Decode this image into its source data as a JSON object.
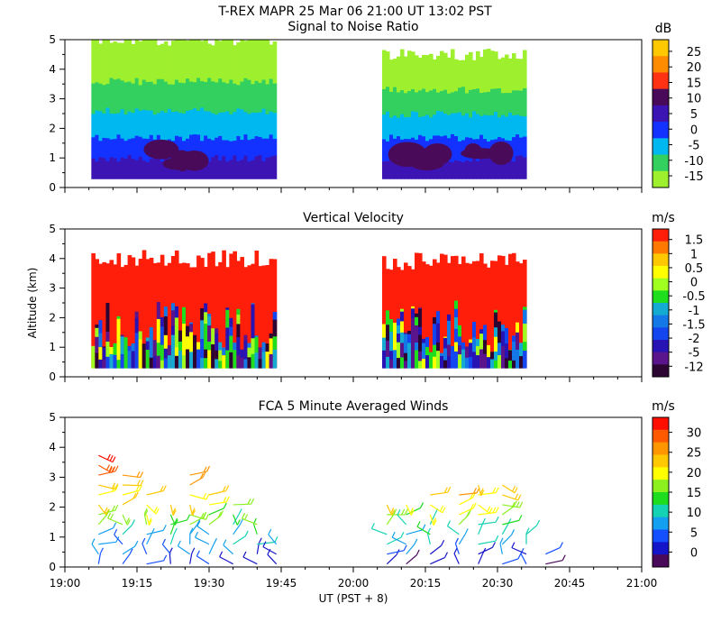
{
  "figure": {
    "title_line1": "T-REX   MAPR 25 Mar 06   21:00 UT   13:02   PST",
    "xlabel": "UT  (PST + 8)",
    "x_ticks": [
      "19:00",
      "19:15",
      "19:30",
      "19:45",
      "20:00",
      "20:15",
      "20:30",
      "20:45",
      "21:00"
    ],
    "xlim_minutes_after_1900": [
      0,
      120
    ],
    "ylabel_shared": "Altitude (km)"
  },
  "colors": {
    "snr_palette": [
      "#9eef2e",
      "#33d060",
      "#00b8f0",
      "#1432ff",
      "#3c14b4",
      "#4a0a5a",
      "#ff3214",
      "#ff8c00",
      "#ffc800"
    ],
    "velocity_palette": [
      "#2d0532",
      "#5a148c",
      "#2814b4",
      "#1446f0",
      "#1478e6",
      "#14aad2",
      "#1ede1e",
      "#a0ff1e",
      "#ffff00",
      "#ffc800",
      "#ff7800",
      "#ff1e0a"
    ],
    "wind_palette": [
      "#4a0a5a",
      "#1414c8",
      "#1450ff",
      "#14a0f0",
      "#14d2b4",
      "#1edc1e",
      "#8cf01e",
      "#ffff00",
      "#ffc800",
      "#ff9600",
      "#ff5a00",
      "#ff0f00"
    ]
  },
  "chart_data": [
    {
      "type": "heatmap",
      "title": "Signal to Noise Ratio",
      "ylabel": "",
      "ylim": [
        0,
        5
      ],
      "y_ticks": [
        "0",
        "1",
        "2",
        "3",
        "4",
        "5"
      ],
      "colorbar_unit": "dB",
      "colorbar_labels": [
        "25",
        "20",
        "15",
        "10",
        "5",
        "0",
        "-5",
        "-10",
        "-15"
      ],
      "segments": [
        {
          "start": 5.5,
          "end": 44,
          "profile_km": [
            [
              0.3,
              "-5"
            ],
            [
              1.0,
              "5"
            ],
            [
              1.7,
              "0"
            ],
            [
              2.6,
              "-5"
            ],
            [
              3.6,
              "-10"
            ],
            [
              5.0,
              "-15"
            ]
          ]
        },
        {
          "start": 66,
          "end": 96,
          "profile_km": [
            [
              0.3,
              "-5"
            ],
            [
              1.0,
              "5"
            ],
            [
              1.7,
              "0"
            ],
            [
              2.5,
              "-5"
            ],
            [
              3.3,
              "-10"
            ],
            [
              4.5,
              "-15"
            ]
          ]
        }
      ]
    },
    {
      "type": "heatmap",
      "title": "Vertical Velocity",
      "ylabel": "Altitude (km)",
      "ylim": [
        0,
        5
      ],
      "y_ticks": [
        "0",
        "1",
        "2",
        "3",
        "4",
        "5"
      ],
      "colorbar_unit": "m/s",
      "colorbar_labels": [
        "1.5",
        "1",
        "0.5",
        "0",
        "-0.5",
        "-1",
        "-1.5",
        "-2",
        "-5",
        "-12"
      ],
      "segments": [
        {
          "start": 5.5,
          "end": 44,
          "top_km": 4.0,
          "dominant": "1.5"
        },
        {
          "start": 66,
          "end": 96,
          "top_km": 3.9,
          "dominant": "1.5"
        }
      ]
    },
    {
      "type": "scatter",
      "title": "FCA 5 Minute Averaged Winds",
      "ylabel": "",
      "ylim": [
        0,
        5
      ],
      "y_ticks": [
        "0",
        "1",
        "2",
        "3",
        "4",
        "5"
      ],
      "colorbar_unit": "m/s",
      "colorbar_labels": [
        "30",
        "25",
        "20",
        "15",
        "10",
        "5",
        "0"
      ],
      "wind_range": [
        0,
        30
      ],
      "columns": [
        {
          "x": 7,
          "top": 4.0
        },
        {
          "x": 12,
          "top": 3.4
        },
        {
          "x": 17,
          "top": 2.5
        },
        {
          "x": 22,
          "top": 2.4
        },
        {
          "x": 26,
          "top": 3.2
        },
        {
          "x": 30,
          "top": 2.6
        },
        {
          "x": 35,
          "top": 2.2
        },
        {
          "x": 40,
          "top": 1.6
        },
        {
          "x": 44,
          "top": 1.0
        },
        {
          "x": 67,
          "top": 2.3
        },
        {
          "x": 71,
          "top": 2.4
        },
        {
          "x": 76,
          "top": 2.5
        },
        {
          "x": 82,
          "top": 2.7
        },
        {
          "x": 86,
          "top": 2.8
        },
        {
          "x": 91,
          "top": 2.8
        },
        {
          "x": 96,
          "top": 1.4
        },
        {
          "x": 100,
          "top": 0.7
        }
      ]
    }
  ]
}
